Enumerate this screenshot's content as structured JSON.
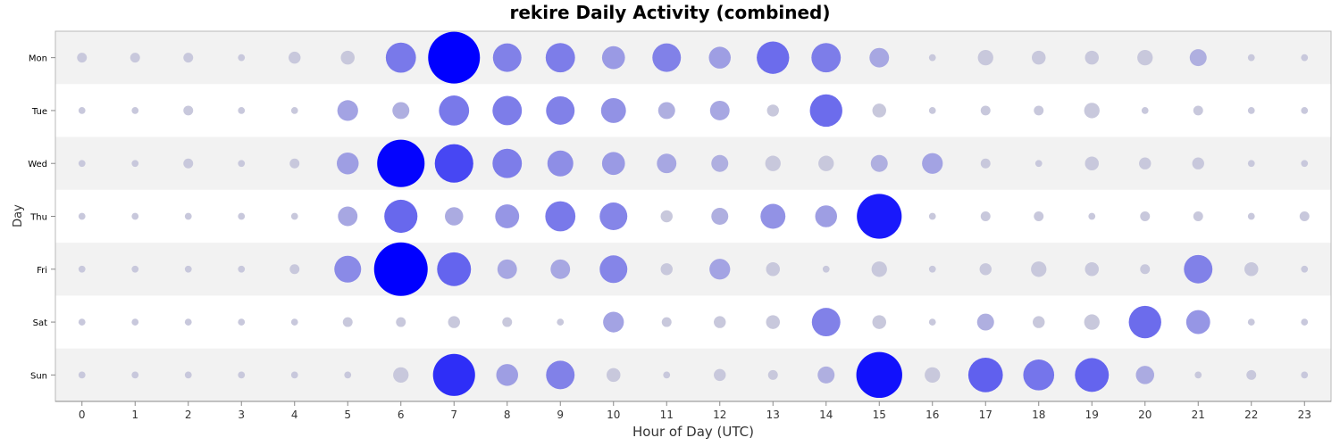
{
  "chart_data": {
    "type": "scatter",
    "title": "rekire Daily Activity (combined)",
    "xlabel": "Hour of Day (UTC)",
    "ylabel": "Day",
    "x": [
      0,
      1,
      2,
      3,
      4,
      5,
      6,
      7,
      8,
      9,
      10,
      11,
      12,
      13,
      14,
      15,
      16,
      17,
      18,
      19,
      20,
      21,
      22,
      23
    ],
    "days": [
      "Mon",
      "Tue",
      "Wed",
      "Thu",
      "Fri",
      "Sat",
      "Sun"
    ],
    "xlim": [
      -0.5,
      23.5
    ],
    "grid": false,
    "legend": "none",
    "colors": {
      "low": "#c8c8dc",
      "high": "#0000ff",
      "band": "#f2f2f2"
    },
    "values": [
      [
        2,
        2,
        2,
        1,
        3,
        4,
        19,
        56,
        17,
        18,
        11,
        17,
        10,
        22,
        18,
        8,
        1,
        5,
        4,
        4,
        5,
        6,
        1,
        1
      ],
      [
        1,
        1,
        2,
        1,
        1,
        9,
        6,
        19,
        18,
        17,
        13,
        6,
        8,
        3,
        22,
        4,
        1,
        2,
        2,
        5,
        1,
        2,
        1,
        1
      ],
      [
        1,
        1,
        2,
        1,
        2,
        10,
        47,
        31,
        18,
        14,
        11,
        8,
        6,
        5,
        5,
        6,
        9,
        2,
        1,
        4,
        3,
        3,
        1,
        1
      ],
      [
        1,
        1,
        1,
        1,
        1,
        8,
        23,
        7,
        12,
        19,
        16,
        3,
        6,
        13,
        10,
        42,
        1,
        2,
        2,
        1,
        2,
        2,
        1,
        2
      ],
      [
        1,
        1,
        1,
        1,
        2,
        15,
        60,
        24,
        8,
        8,
        16,
        3,
        9,
        4,
        1,
        5,
        1,
        3,
        5,
        4,
        2,
        17,
        4,
        1
      ],
      [
        1,
        1,
        1,
        1,
        1,
        2,
        2,
        3,
        2,
        1,
        9,
        2,
        3,
        4,
        17,
        4,
        1,
        6,
        3,
        5,
        22,
        12,
        1,
        1
      ],
      [
        1,
        1,
        1,
        1,
        1,
        1,
        5,
        37,
        10,
        17,
        4,
        1,
        3,
        2,
        6,
        44,
        5,
        25,
        20,
        24,
        7,
        1,
        2,
        1
      ]
    ]
  }
}
